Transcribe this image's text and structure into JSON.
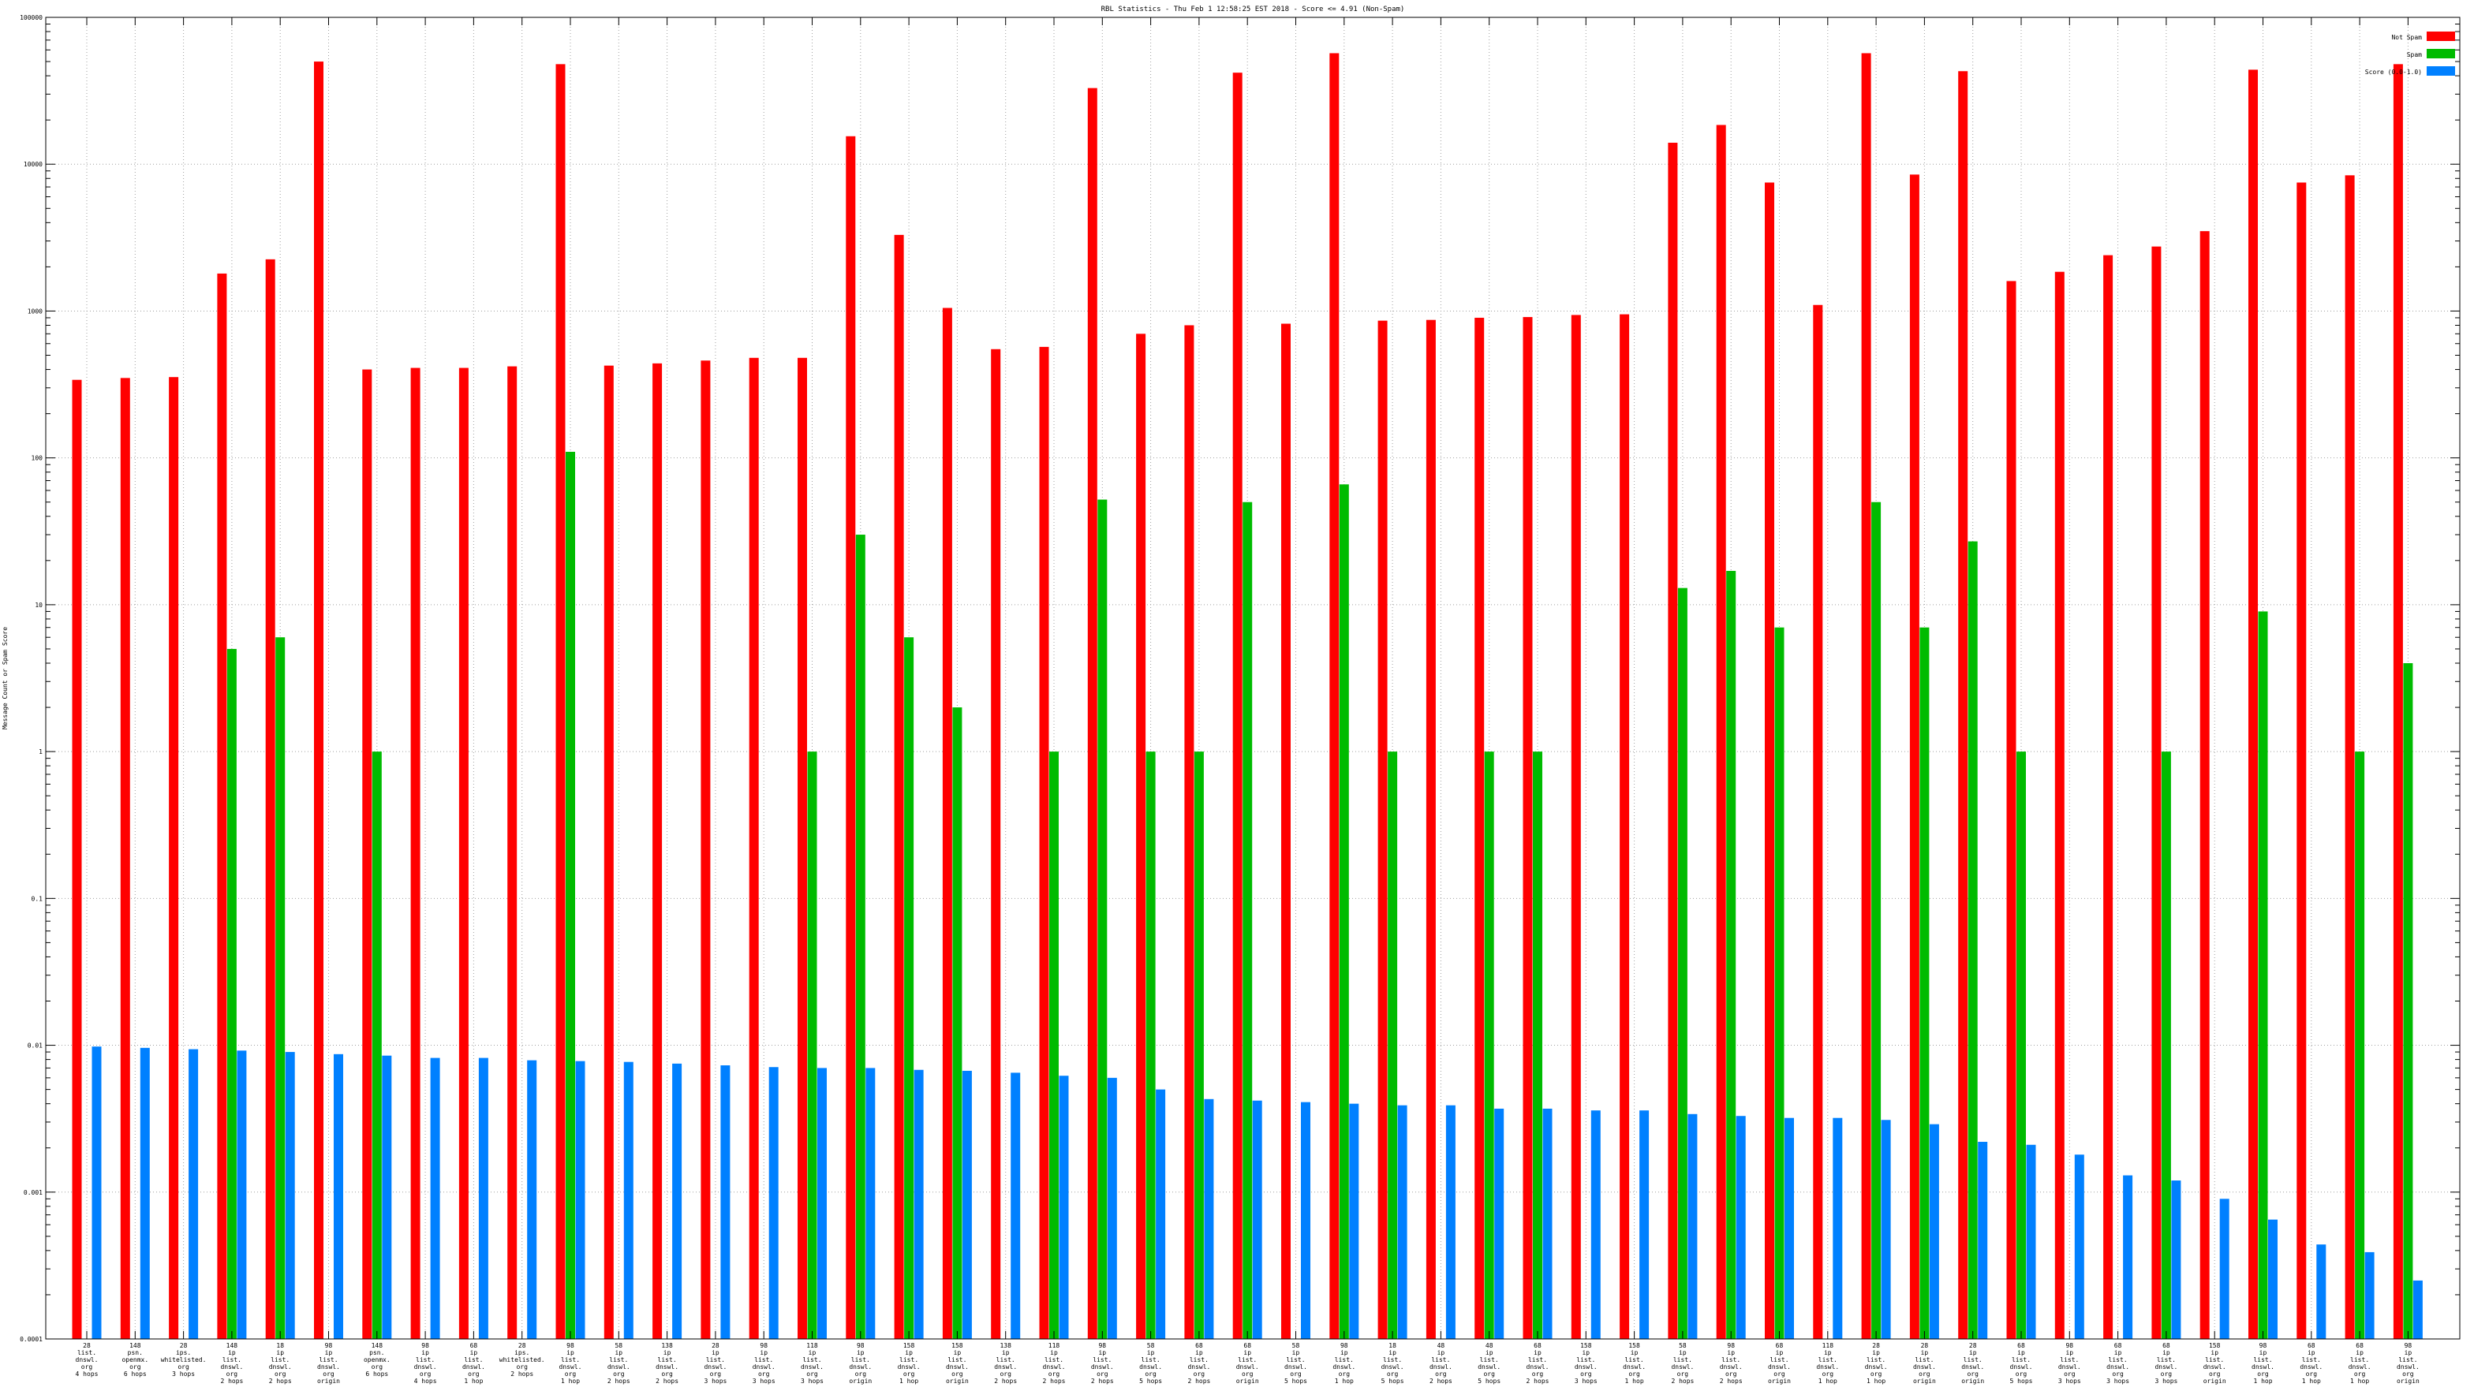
{
  "chart_data": {
    "type": "bar",
    "title": "RBL Statistics - Thu Feb  1 12:58:25 EST 2018 - Score <= 4.91 (Non-Spam)",
    "ylabel": "Message Count or Spam Score",
    "xlabel": "",
    "yscale": "log",
    "ylim": [
      0.0001,
      100000
    ],
    "yticks": [
      "100000",
      "10000",
      "1000",
      "100",
      "10",
      "1",
      "0.1",
      "0.01",
      "0.001",
      "0.0001"
    ],
    "grid": true,
    "legend_position": "top-right",
    "categories": [
      [
        "28",
        "list.",
        "dnswl.",
        "org",
        "4 hops"
      ],
      [
        "148",
        "psn.",
        "openmx.",
        "org",
        "6 hops"
      ],
      [
        "28",
        "ips.",
        "whitelisted.",
        "org",
        "3 hops"
      ],
      [
        "148",
        "ip",
        "list.",
        "dnswl.",
        "org",
        "2 hops"
      ],
      [
        "18",
        "ip",
        "list.",
        "dnswl.",
        "org",
        "2 hops"
      ],
      [
        "98",
        "ip",
        "list.",
        "dnswl.",
        "org",
        "origin"
      ],
      [
        "148",
        "psn.",
        "openmx.",
        "org",
        "6 hops"
      ],
      [
        "98",
        "ip",
        "list.",
        "dnswl.",
        "org",
        "4 hops"
      ],
      [
        "68",
        "ip",
        "list.",
        "dnswl.",
        "org",
        "1 hop"
      ],
      [
        "28",
        "ips.",
        "whitelisted.",
        "org",
        "2 hops"
      ],
      [
        "98",
        "ip",
        "list.",
        "dnswl.",
        "org",
        "1 hop"
      ],
      [
        "58",
        "ip",
        "list.",
        "dnswl.",
        "org",
        "2 hops"
      ],
      [
        "138",
        "ip",
        "list.",
        "dnswl.",
        "org",
        "2 hops"
      ],
      [
        "28",
        "ip",
        "list.",
        "dnswl.",
        "org",
        "3 hops"
      ],
      [
        "98",
        "ip",
        "list.",
        "dnswl.",
        "org",
        "3 hops"
      ],
      [
        "118",
        "ip",
        "list.",
        "dnswl.",
        "org",
        "3 hops"
      ],
      [
        "98",
        "ip",
        "list.",
        "dnswl.",
        "org",
        "origin"
      ],
      [
        "158",
        "ip",
        "list.",
        "dnswl.",
        "org",
        "1 hop"
      ],
      [
        "158",
        "ip",
        "list.",
        "dnswl.",
        "org",
        "origin"
      ],
      [
        "138",
        "ip",
        "list.",
        "dnswl.",
        "org",
        "2 hops"
      ],
      [
        "118",
        "ip",
        "list.",
        "dnswl.",
        "org",
        "2 hops"
      ],
      [
        "98",
        "ip",
        "list.",
        "dnswl.",
        "org",
        "2 hops"
      ],
      [
        "58",
        "ip",
        "list.",
        "dnswl.",
        "org",
        "5 hops"
      ],
      [
        "68",
        "ip",
        "list.",
        "dnswl.",
        "org",
        "2 hops"
      ],
      [
        "68",
        "ip",
        "list.",
        "dnswl.",
        "org",
        "origin"
      ],
      [
        "58",
        "ip",
        "list.",
        "dnswl.",
        "org",
        "5 hops"
      ],
      [
        "98",
        "ip",
        "list.",
        "dnswl.",
        "org",
        "1 hop"
      ],
      [
        "18",
        "ip",
        "list.",
        "dnswl.",
        "org",
        "5 hops"
      ],
      [
        "48",
        "ip",
        "list.",
        "dnswl.",
        "org",
        "2 hops"
      ],
      [
        "48",
        "ip",
        "list.",
        "dnswl.",
        "org",
        "5 hops"
      ],
      [
        "68",
        "ip",
        "list.",
        "dnswl.",
        "org",
        "2 hops"
      ],
      [
        "158",
        "ip",
        "list.",
        "dnswl.",
        "org",
        "3 hops"
      ],
      [
        "158",
        "ip",
        "list.",
        "dnswl.",
        "org",
        "1 hop"
      ],
      [
        "58",
        "ip",
        "list.",
        "dnswl.",
        "org",
        "2 hops"
      ],
      [
        "98",
        "ip",
        "list.",
        "dnswl.",
        "org",
        "2 hops"
      ],
      [
        "68",
        "ip",
        "list.",
        "dnswl.",
        "org",
        "origin"
      ],
      [
        "118",
        "ip",
        "list.",
        "dnswl.",
        "org",
        "1 hop"
      ],
      [
        "28",
        "ip",
        "list.",
        "dnswl.",
        "org",
        "1 hop"
      ],
      [
        "28",
        "ip",
        "list.",
        "dnswl.",
        "org",
        "origin"
      ],
      [
        "28",
        "ip",
        "list.",
        "dnswl.",
        "org",
        "origin"
      ],
      [
        "68",
        "ip",
        "list.",
        "dnswl.",
        "org",
        "5 hops"
      ],
      [
        "98",
        "ip",
        "list.",
        "dnswl.",
        "org",
        "3 hops"
      ],
      [
        "68",
        "ip",
        "list.",
        "dnswl.",
        "org",
        "3 hops"
      ],
      [
        "68",
        "ip",
        "list.",
        "dnswl.",
        "org",
        "3 hops"
      ],
      [
        "158",
        "ip",
        "list.",
        "dnswl.",
        "org",
        "origin"
      ],
      [
        "98",
        "ip",
        "list.",
        "dnswl.",
        "org",
        "1 hop"
      ],
      [
        "68",
        "ip",
        "list.",
        "dnswl.",
        "org",
        "1 hop"
      ],
      [
        "68",
        "ip",
        "list.",
        "dnswl.",
        "org",
        "1 hop"
      ],
      [
        "98",
        "ip",
        "list.",
        "dnswl.",
        "org",
        "origin"
      ]
    ],
    "series": [
      {
        "name": "Not Spam",
        "color": "#ff0000",
        "values": [
          340,
          350,
          355,
          1800,
          2250,
          50000,
          400,
          410,
          410,
          420,
          48000,
          425,
          440,
          460,
          480,
          480,
          15500,
          3300,
          1050,
          550,
          570,
          33000,
          700,
          800,
          42000,
          820,
          57000,
          860,
          870,
          900,
          910,
          940,
          950,
          14000,
          18500,
          7500,
          1100,
          57000,
          8500,
          43000,
          1600,
          1850,
          2400,
          2750,
          3500,
          44000,
          7500,
          8400,
          48000
        ]
      },
      {
        "name": "Spam",
        "color": "#00bb00",
        "values": [
          null,
          null,
          null,
          5,
          6,
          null,
          1,
          null,
          null,
          null,
          110,
          null,
          null,
          null,
          null,
          1,
          30,
          6,
          2,
          null,
          1,
          52,
          1,
          1,
          50,
          null,
          66,
          1,
          null,
          1,
          1,
          null,
          null,
          13,
          17,
          7,
          null,
          50,
          7,
          27,
          1,
          null,
          null,
          1,
          null,
          9,
          null,
          1,
          4
        ]
      },
      {
        "name": "Score (0.0-1.0)",
        "color": "#0080ff",
        "values": [
          0.0098,
          0.0096,
          0.0094,
          0.0092,
          0.009,
          0.0087,
          0.0085,
          0.0082,
          0.0082,
          0.0079,
          0.0078,
          0.0077,
          0.0075,
          0.0073,
          0.0071,
          0.007,
          0.007,
          0.0068,
          0.0067,
          0.0065,
          0.0062,
          0.006,
          0.005,
          0.0043,
          0.0042,
          0.0041,
          0.004,
          0.0039,
          0.0039,
          0.0037,
          0.0037,
          0.0036,
          0.0036,
          0.0034,
          0.0033,
          0.0032,
          0.0032,
          0.0031,
          0.0029,
          0.0022,
          0.0021,
          0.0018,
          0.0013,
          0.0012,
          0.0009,
          0.00065,
          0.00044,
          0.00039,
          0.00025
        ]
      }
    ]
  }
}
